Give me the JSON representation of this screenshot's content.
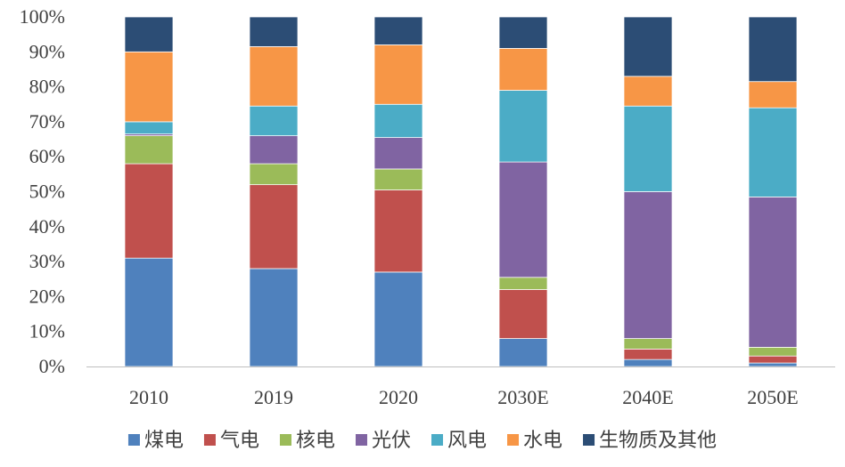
{
  "chart_data": {
    "type": "bar",
    "stacked": true,
    "title": "",
    "xlabel": "",
    "ylabel": "",
    "ylim": [
      0,
      100
    ],
    "y_ticks": [
      "0%",
      "10%",
      "20%",
      "30%",
      "40%",
      "50%",
      "60%",
      "70%",
      "80%",
      "90%",
      "100%"
    ],
    "y_tick_values": [
      0,
      10,
      20,
      30,
      40,
      50,
      60,
      70,
      80,
      90,
      100
    ],
    "grid": false,
    "legend_position": "bottom",
    "categories": [
      "2010",
      "2019",
      "2020",
      "2030E",
      "2040E",
      "2050E"
    ],
    "series": [
      {
        "name": "煤电",
        "color": "#4F81BD",
        "values": [
          31,
          28,
          27,
          8,
          2,
          1
        ]
      },
      {
        "name": "气电",
        "color": "#C0504D",
        "values": [
          27,
          24,
          23.5,
          14,
          3,
          2
        ]
      },
      {
        "name": "核电",
        "color": "#9BBB59",
        "values": [
          8,
          6,
          6,
          3.5,
          3,
          2.5
        ]
      },
      {
        "name": "光伏",
        "color": "#8064A2",
        "values": [
          0.5,
          8,
          9,
          33,
          42,
          43
        ]
      },
      {
        "name": "风电",
        "color": "#4BACC6",
        "values": [
          3.5,
          8.5,
          9.5,
          20.5,
          24.5,
          25.5
        ]
      },
      {
        "name": "水电",
        "color": "#F79646",
        "values": [
          20,
          17,
          17,
          12,
          8.5,
          7.5
        ]
      },
      {
        "name": "生物质及其他",
        "color": "#2C4D75",
        "values": [
          10,
          8.5,
          8,
          9,
          17,
          18.5
        ]
      }
    ]
  }
}
